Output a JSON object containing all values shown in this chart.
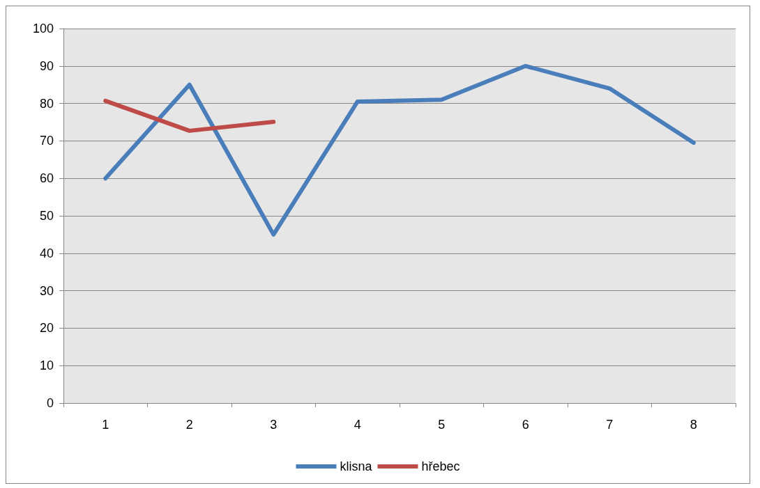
{
  "chart_data": {
    "type": "line",
    "categories": [
      "1",
      "2",
      "3",
      "4",
      "5",
      "6",
      "7",
      "8"
    ],
    "series": [
      {
        "name": "klisna",
        "color": "#4a7ebb",
        "values": [
          60,
          85,
          45,
          80.5,
          81,
          90,
          84,
          69.5
        ]
      },
      {
        "name": "hřebec",
        "color": "#be4b48",
        "values": [
          80.7,
          72.7,
          75.1,
          null,
          null,
          null,
          null,
          null
        ]
      }
    ],
    "ylim": [
      0,
      100
    ],
    "yticks": [
      0,
      10,
      20,
      30,
      40,
      50,
      60,
      70,
      80,
      90,
      100
    ],
    "grid": "y",
    "legend": "bottom",
    "marker": "none",
    "line_style": "solid"
  }
}
